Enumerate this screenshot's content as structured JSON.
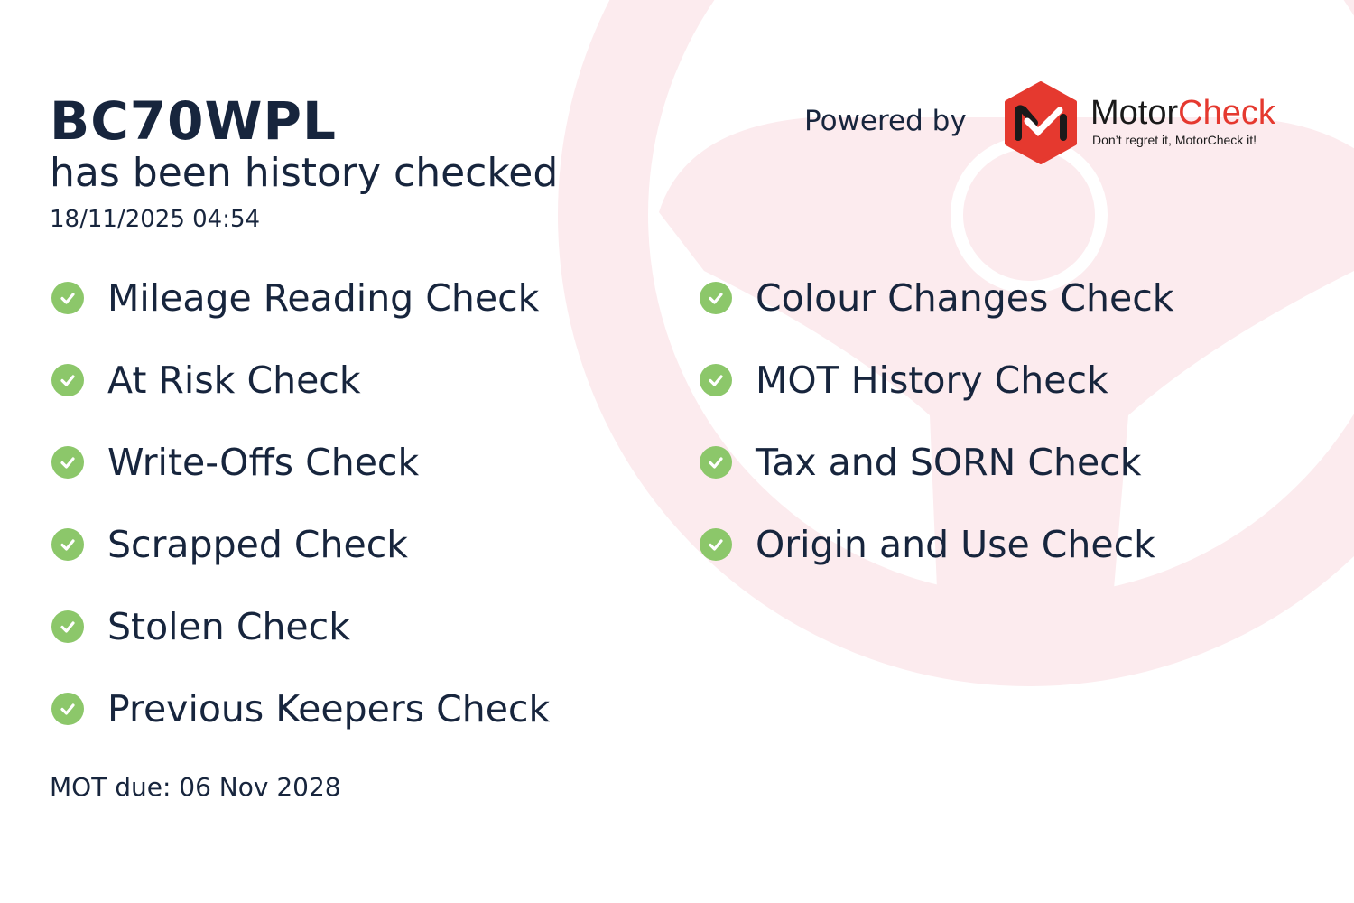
{
  "header": {
    "registration": "BC70WPL",
    "subtitle": "has been history checked",
    "datetime": "18/11/2025 04:54"
  },
  "branding": {
    "powered_by": "Powered by",
    "brand_part1": "Motor",
    "brand_part2": "Check",
    "tagline": "Don’t regret it, MotorCheck it!",
    "brand_color": "#e5392f",
    "check_color": "#8cc76a",
    "watermark": "steering-wheel-icon"
  },
  "checks_left": [
    {
      "label": "Mileage Reading Check",
      "status": "passed"
    },
    {
      "label": "At Risk Check",
      "status": "passed"
    },
    {
      "label": "Write-Offs Check",
      "status": "passed"
    },
    {
      "label": "Scrapped Check",
      "status": "passed"
    },
    {
      "label": "Stolen Check",
      "status": "passed"
    },
    {
      "label": "Previous Keepers Check",
      "status": "passed"
    }
  ],
  "checks_right": [
    {
      "label": "Colour Changes Check",
      "status": "passed"
    },
    {
      "label": "MOT History Check",
      "status": "passed"
    },
    {
      "label": "Tax and SORN Check",
      "status": "passed"
    },
    {
      "label": "Origin and Use Check",
      "status": "passed"
    }
  ],
  "footer": {
    "mot_due": "MOT due: 06 Nov 2028"
  }
}
